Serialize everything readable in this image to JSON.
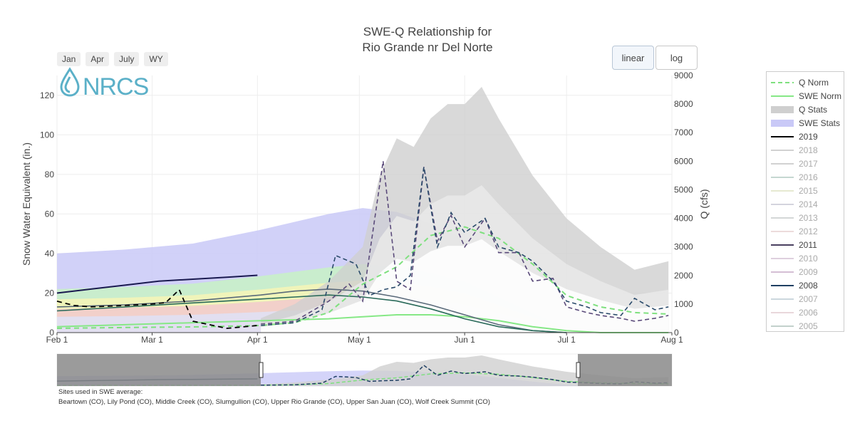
{
  "title_line1": "SWE-Q Relationship for",
  "title_line2": "Rio Grande nr Del Norte",
  "range_buttons": [
    "Jan",
    "Apr",
    "July",
    "WY"
  ],
  "scale_buttons": [
    "linear",
    "log"
  ],
  "logo_text": "NRCS",
  "sites_label": "Sites used in SWE average:",
  "sites_list": "Beartown (CO), Lily Pond (CO), Middle Creek (CO), Slumgullion (CO), Upper Rio Grande (CO), Upper San Juan (CO), Wolf Creek Summit (CO)",
  "colors": {
    "q_norm": "#7ee07e",
    "swe_norm": "#86e886",
    "q_stats": "#cfcfcf",
    "swe_stats": "#c9c9f7",
    "y2019": "#000000",
    "y2008": "#1f3f62"
  },
  "chart_data": {
    "type": "line",
    "title": "SWE-Q Relationship for Rio Grande nr Del Norte",
    "xlabel": "",
    "ylabel": "Snow Water Equivalent (in.)",
    "y2label": "Q (cfs)",
    "x_ticks": [
      "Feb  1",
      "Mar  1",
      "Apr  1",
      "May  1",
      "Jun  1",
      "Jul  1",
      "Aug  1"
    ],
    "ylim": [
      0,
      130
    ],
    "y2lim": [
      0,
      9000
    ],
    "y_ticks": [
      0,
      20,
      40,
      60,
      80,
      100,
      120
    ],
    "y2_ticks": [
      0,
      1000,
      2000,
      3000,
      4000,
      5000,
      6000,
      7000,
      8000,
      9000
    ],
    "grid": true,
    "legend_position": "right",
    "legend": [
      {
        "name": "Q Norm",
        "style": "dash",
        "color": "#7ee07e"
      },
      {
        "name": "SWE Norm",
        "style": "line",
        "color": "#86e886"
      },
      {
        "name": "Q Stats",
        "style": "band",
        "color": "#cfcfcf"
      },
      {
        "name": "SWE Stats",
        "style": "band",
        "color": "#c9c9f7"
      },
      {
        "name": "2019",
        "style": "line",
        "color": "#000000",
        "active": true
      },
      {
        "name": "2018",
        "style": "line",
        "color": "#9a9a9a",
        "active": false
      },
      {
        "name": "2017",
        "style": "line",
        "color": "#9a9a9a",
        "active": false
      },
      {
        "name": "2016",
        "style": "line",
        "color": "#7fa89a",
        "active": false
      },
      {
        "name": "2015",
        "style": "line",
        "color": "#c8d09a",
        "active": false
      },
      {
        "name": "2014",
        "style": "line",
        "color": "#a0a0b8",
        "active": false
      },
      {
        "name": "2013",
        "style": "line",
        "color": "#a0a8a8",
        "active": false
      },
      {
        "name": "2012",
        "style": "line",
        "color": "#d4b0b0",
        "active": false
      },
      {
        "name": "2011",
        "style": "line",
        "color": "#4a4060",
        "active": true
      },
      {
        "name": "2010",
        "style": "line",
        "color": "#b898b8",
        "active": false
      },
      {
        "name": "2009",
        "style": "line",
        "color": "#a070a0",
        "active": false
      },
      {
        "name": "2008",
        "style": "line",
        "color": "#1f3f62",
        "active": true
      },
      {
        "name": "2007",
        "style": "line",
        "color": "#90a8b8",
        "active": false
      },
      {
        "name": "2006",
        "style": "line",
        "color": "#d0a8b0",
        "active": false
      },
      {
        "name": "2005",
        "style": "line",
        "color": "#7a9a90",
        "active": false
      }
    ],
    "series": [
      {
        "name": "SWE Stats max",
        "axis": "swe",
        "x_days": [
          0,
          20,
          40,
          60,
          80,
          90,
          100,
          110,
          120,
          130,
          140,
          150,
          160,
          170,
          180
        ],
        "values": [
          40,
          42,
          45,
          52,
          60,
          63,
          61,
          55,
          47,
          33,
          18,
          5,
          1,
          0,
          0
        ]
      },
      {
        "name": "SWE Norm",
        "axis": "swe",
        "x_days": [
          0,
          20,
          40,
          60,
          80,
          90,
          100,
          110,
          120,
          130,
          140,
          150,
          160,
          170,
          180
        ],
        "values": [
          3,
          4,
          5,
          6,
          7,
          8,
          9,
          9,
          8,
          6,
          3,
          1,
          0,
          0,
          0
        ]
      },
      {
        "name": "2019",
        "axis": "swe",
        "x_days": [
          0,
          10,
          20,
          30,
          40,
          50,
          59
        ],
        "values": [
          20,
          22,
          24,
          26,
          27,
          28,
          29
        ]
      },
      {
        "name": "2008",
        "axis": "swe",
        "x_days": [
          0,
          20,
          40,
          60,
          70,
          80,
          90,
          100,
          110,
          120,
          130,
          140,
          150
        ],
        "values": [
          11,
          13,
          15,
          17,
          18,
          19,
          18,
          16,
          12,
          7,
          3,
          1,
          0
        ]
      },
      {
        "name": "2011",
        "axis": "swe",
        "x_days": [
          0,
          20,
          40,
          60,
          70,
          80,
          90,
          100,
          110,
          120,
          130,
          140,
          150
        ],
        "values": [
          13,
          14,
          16,
          19,
          21,
          22,
          21,
          18,
          14,
          9,
          4,
          1,
          0
        ]
      },
      {
        "name": "Q Stats max",
        "axis": "q",
        "x_days": [
          60,
          70,
          80,
          90,
          95,
          100,
          105,
          110,
          115,
          120,
          125,
          130,
          140,
          150,
          160,
          170,
          180
        ],
        "values": [
          500,
          1000,
          1800,
          3000,
          5500,
          6800,
          6500,
          7500,
          8000,
          8000,
          8600,
          7500,
          5500,
          4000,
          3000,
          2200,
          2500
        ]
      },
      {
        "name": "Q Norm",
        "axis": "q",
        "x_days": [
          0,
          20,
          40,
          60,
          70,
          80,
          90,
          100,
          110,
          120,
          130,
          140,
          150,
          160,
          170,
          180
        ],
        "values": [
          150,
          180,
          200,
          250,
          350,
          700,
          1700,
          2300,
          3400,
          3700,
          3300,
          2400,
          1300,
          900,
          700,
          650
        ]
      },
      {
        "name": "2019 Q",
        "axis": "q",
        "x_days": [
          0,
          5,
          10,
          20,
          28,
          32,
          36,
          40,
          50,
          59
        ],
        "values": [
          1100,
          950,
          900,
          950,
          1000,
          1050,
          1500,
          400,
          150,
          250
        ]
      },
      {
        "name": "2011 Q",
        "axis": "q",
        "x_days": [
          60,
          70,
          80,
          86,
          90,
          96,
          100,
          104,
          108,
          112,
          116,
          120,
          126,
          130,
          136,
          140,
          146,
          150,
          156,
          160,
          166,
          170,
          176,
          180
        ],
        "values": [
          300,
          400,
          1100,
          1700,
          1100,
          6000,
          1800,
          1500,
          5800,
          3200,
          4100,
          3000,
          4000,
          2800,
          2800,
          1800,
          1900,
          900,
          700,
          600,
          500,
          400,
          500,
          600
        ]
      },
      {
        "name": "2008 Q",
        "axis": "q",
        "x_days": [
          60,
          70,
          78,
          82,
          88,
          92,
          96,
          100,
          104,
          108,
          112,
          116,
          120,
          126,
          130,
          136,
          140,
          146,
          150,
          156,
          160,
          166,
          170,
          176,
          180
        ],
        "values": [
          250,
          350,
          800,
          2700,
          2400,
          1300,
          1500,
          1600,
          2000,
          5800,
          3000,
          4200,
          3500,
          4000,
          3000,
          2800,
          2500,
          1800,
          1100,
          900,
          700,
          600,
          1200,
          800,
          900
        ]
      }
    ]
  }
}
